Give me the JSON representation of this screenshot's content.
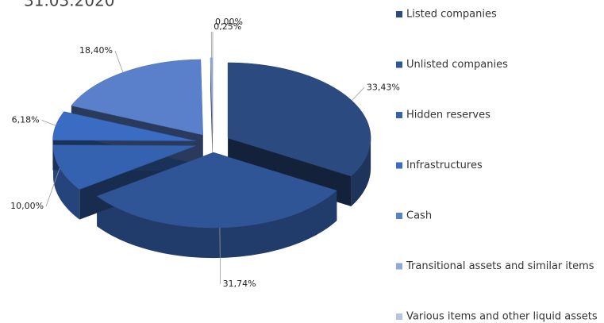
{
  "chart_data": {
    "type": "pie",
    "title": "31.03.2020",
    "categories": [
      "Listed companies",
      "Unlisted companies",
      "Hidden reserves",
      "Infrastructures",
      "Cash",
      "Transitional assets and similar items",
      "Various items and other liquid assets"
    ],
    "values": [
      33.43,
      31.74,
      10.0,
      6.18,
      18.4,
      0.25,
      0.0
    ],
    "value_labels": [
      "33,43%",
      "31,74%",
      "10,00%",
      "6,18%",
      "18,40%",
      "0,25%",
      "0,00%"
    ],
    "colors": [
      "#2b4a80",
      "#2f5597",
      "#3461b0",
      "#3a6cc4",
      "#5a80cc",
      "#8fa8dc",
      "#b4c4e8"
    ],
    "legend": "right"
  }
}
